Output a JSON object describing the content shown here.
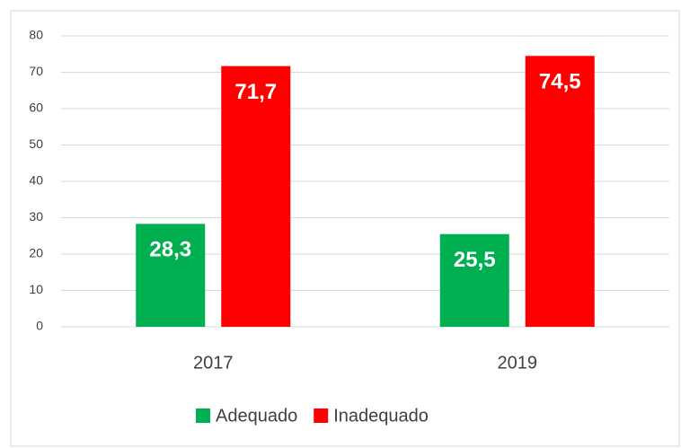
{
  "chart_data": {
    "type": "bar",
    "categories": [
      "2017",
      "2019"
    ],
    "series": [
      {
        "name": "Adequado",
        "color": "#00b050",
        "values": [
          28.3,
          25.5
        ],
        "value_labels": [
          "28,3",
          "25,5"
        ]
      },
      {
        "name": "Inadequado",
        "color": "#ff0000",
        "values": [
          71.7,
          74.5
        ],
        "value_labels": [
          "71,7",
          "74,5"
        ]
      }
    ],
    "ylim": [
      0,
      80
    ],
    "yticks": [
      0,
      10,
      20,
      30,
      40,
      50,
      60,
      70,
      80
    ],
    "grid": true,
    "legend": "bottom"
  }
}
